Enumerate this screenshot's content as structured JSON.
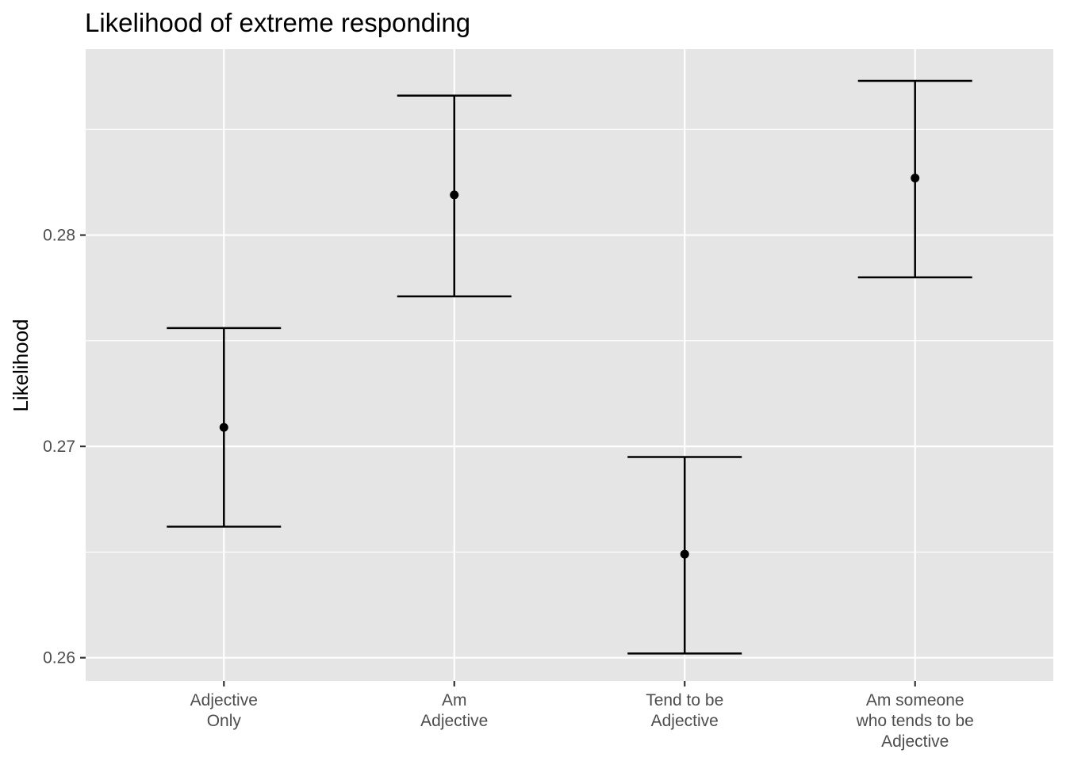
{
  "chart_data": {
    "type": "scatter",
    "title": "Likelihood of extreme responding",
    "xlabel": "",
    "ylabel": "Likelihood",
    "ylim": [
      0.2589,
      0.2888
    ],
    "y_ticks": [
      0.26,
      0.27,
      0.28
    ],
    "y_tick_labels": [
      "0.26",
      "0.27",
      "0.28"
    ],
    "y_minor_ticks": [
      0.265,
      0.275,
      0.285
    ],
    "grid": true,
    "error_bars": true,
    "categories": [
      [
        "Adjective",
        "Only"
      ],
      [
        "Am",
        "Adjective"
      ],
      [
        "Tend to be",
        "Adjective"
      ],
      [
        "Am someone",
        "who tends to be",
        "Adjective"
      ]
    ],
    "values": [
      0.2709,
      0.2819,
      0.2649,
      0.2827
    ],
    "lower": [
      0.2662,
      0.2771,
      0.2602,
      0.278
    ],
    "upper": [
      0.2756,
      0.2866,
      0.2695,
      0.2873
    ],
    "colors": {
      "panel": "#e5e5e5",
      "grid": "#ffffff",
      "marks": "#000000",
      "tick_text": "#4d4d4d",
      "ticks": "#333333"
    }
  }
}
